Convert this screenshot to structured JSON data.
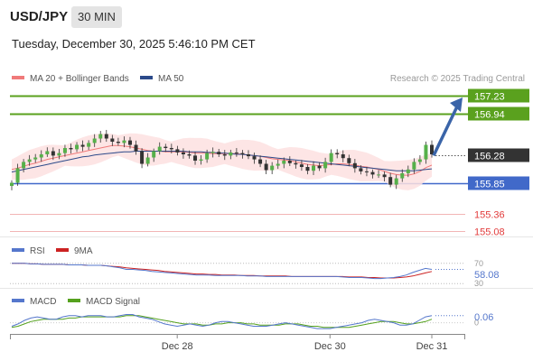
{
  "header": {
    "pair": "USD/JPY",
    "timeframe": "30 MIN",
    "datetime": "Tuesday, December 30, 2025 5:46:10 PM CET"
  },
  "credit": "Research © 2025 Trading Central",
  "colors": {
    "resistance": "#5aa11e",
    "support": "#e23c3c",
    "pivot": "#4169c9",
    "last": "#333333",
    "ma20": "#f07a7a",
    "ma50": "#2c4a8a",
    "bollinger_fill": "#fde0e0",
    "rsi": "#5577cc",
    "rsi_ma": "#cc2222",
    "macd": "#5577cc",
    "macd_signal": "#55a11e",
    "arrow": "#3a64a8"
  },
  "chart_data": [
    {
      "type": "line",
      "panel": "price",
      "title": "",
      "y_range": [
        155.0,
        157.4
      ],
      "legend": [
        {
          "label": "MA 20 + Bollinger Bands",
          "color": "#f07a7a"
        },
        {
          "label": "MA 50",
          "color": "#2c4a8a"
        }
      ],
      "levels": [
        {
          "label": "157.23",
          "value": 157.23,
          "kind": "resistance"
        },
        {
          "label": "156.94",
          "value": 156.94,
          "kind": "resistance"
        },
        {
          "label": "156.28",
          "value": 156.28,
          "kind": "last"
        },
        {
          "label": "155.85",
          "value": 155.85,
          "kind": "pivot"
        },
        {
          "label": "155.36",
          "value": 155.36,
          "kind": "support"
        },
        {
          "label": "155.08",
          "value": 155.08,
          "kind": "support"
        }
      ],
      "series": [
        {
          "name": "USD/JPY",
          "values": [
            155.85,
            156.08,
            156.18,
            156.22,
            156.25,
            156.3,
            156.35,
            156.28,
            156.32,
            156.4,
            156.38,
            156.45,
            156.42,
            156.48,
            156.55,
            156.62,
            156.55,
            156.5,
            156.48,
            156.52,
            156.45,
            156.35,
            156.15,
            156.25,
            156.35,
            156.42,
            156.4,
            156.38,
            156.33,
            156.3,
            156.28,
            156.2,
            156.22,
            156.32,
            156.34,
            156.3,
            156.28,
            156.33,
            156.32,
            156.3,
            156.27,
            156.22,
            156.15,
            156.05,
            156.12,
            156.15,
            156.2,
            156.16,
            156.14,
            156.1,
            156.04,
            156.12,
            156.08,
            156.18,
            156.32,
            156.3,
            156.24,
            156.16,
            156.08,
            156.03,
            156.02,
            155.98,
            155.98,
            155.94,
            155.82,
            155.92,
            156.0,
            156.06,
            156.18,
            156.22,
            156.45,
            156.3
          ]
        },
        {
          "name": "MA 20",
          "values": [
            156.06,
            156.08,
            156.11,
            156.14,
            156.16,
            156.19,
            156.22,
            156.24,
            156.26,
            156.28,
            156.3,
            156.32,
            156.34,
            156.36,
            156.38,
            156.4,
            156.42,
            156.44,
            156.44,
            156.43,
            156.42,
            156.4,
            156.38,
            156.36,
            156.35,
            156.35,
            156.34,
            156.34,
            156.34,
            156.34,
            156.33,
            156.32,
            156.32,
            156.32,
            156.31,
            156.31,
            156.31,
            156.31,
            156.31,
            156.3,
            156.29,
            156.28,
            156.27,
            156.25,
            156.23,
            156.22,
            156.21,
            156.2,
            156.18,
            156.16,
            156.14,
            156.13,
            156.12,
            156.13,
            156.14,
            156.15,
            156.15,
            156.14,
            156.13,
            156.11,
            156.1,
            156.08,
            156.06,
            156.03,
            156.0,
            155.98,
            155.97,
            155.97,
            155.99,
            156.03,
            156.09,
            156.13
          ]
        },
        {
          "name": "MA 50",
          "values": [
            156.02,
            156.04,
            156.06,
            156.08,
            156.1,
            156.12,
            156.14,
            156.16,
            156.18,
            156.2,
            156.22,
            156.24,
            156.26,
            156.27,
            156.29,
            156.3,
            156.31,
            156.32,
            156.33,
            156.34,
            156.34,
            156.35,
            156.35,
            156.35,
            156.35,
            156.35,
            156.35,
            156.35,
            156.35,
            156.35,
            156.34,
            156.34,
            156.34,
            156.33,
            156.33,
            156.32,
            156.32,
            156.31,
            156.3,
            156.3,
            156.29,
            156.28,
            156.27,
            156.26,
            156.25,
            156.24,
            156.23,
            156.22,
            156.21,
            156.2,
            156.19,
            156.18,
            156.17,
            156.16,
            156.15,
            156.14,
            156.13,
            156.12,
            156.11,
            156.1,
            156.09,
            156.08,
            156.07,
            156.06,
            156.05,
            156.04,
            156.04,
            156.04,
            156.04,
            156.05,
            156.06,
            156.07
          ]
        }
      ],
      "bollinger_width": 0.2,
      "projection": {
        "from": 156.28,
        "to": 157.2
      }
    },
    {
      "type": "line",
      "panel": "rsi",
      "legend": [
        {
          "label": "RSI",
          "color": "#5577cc"
        },
        {
          "label": "9MA",
          "color": "#cc2222"
        }
      ],
      "y_range": [
        25,
        75
      ],
      "reference_lines": [
        {
          "label": "70",
          "value": 70
        },
        {
          "label": "30",
          "value": 30
        }
      ],
      "last_value_label": "58.08",
      "series": [
        {
          "name": "RSI",
          "values": [
            70,
            70,
            70,
            69,
            69,
            68,
            68,
            68,
            68,
            67,
            67,
            67,
            66,
            66,
            66,
            65,
            63,
            61,
            58,
            58,
            57,
            56,
            54,
            53,
            52,
            51,
            50,
            49,
            48,
            47,
            47,
            47,
            46,
            46,
            46,
            46,
            46,
            45,
            45,
            45,
            44,
            44,
            44,
            44,
            44,
            44,
            44,
            44,
            44,
            44,
            44,
            44,
            43,
            42,
            42,
            42,
            41,
            40,
            40,
            41,
            42,
            44,
            47,
            52,
            56,
            60,
            58
          ]
        },
        {
          "name": "9MA",
          "values": [
            70,
            70,
            70,
            69,
            69,
            68,
            68,
            68,
            68,
            67,
            67,
            67,
            66,
            66,
            66,
            65,
            64,
            63,
            61,
            60,
            59,
            58,
            57,
            56,
            54,
            53,
            52,
            51,
            50,
            49,
            49,
            48,
            48,
            47,
            47,
            47,
            46,
            46,
            46,
            45,
            45,
            45,
            45,
            45,
            44,
            44,
            44,
            44,
            44,
            44,
            44,
            44,
            44,
            43,
            43,
            43,
            42,
            42,
            41,
            41,
            41,
            42,
            43,
            45,
            48,
            51,
            54
          ]
        }
      ]
    },
    {
      "type": "line",
      "panel": "macd",
      "legend": [
        {
          "label": "MACD",
          "color": "#5577cc"
        },
        {
          "label": "MACD Signal",
          "color": "#55a11e"
        }
      ],
      "y_range": [
        -0.08,
        0.12
      ],
      "reference_lines": [
        {
          "label": "0",
          "value": 0
        }
      ],
      "last_value_label": "0.06",
      "series": [
        {
          "name": "MACD",
          "values": [
            -0.03,
            -0.01,
            0.02,
            0.04,
            0.05,
            0.04,
            0.03,
            0.03,
            0.05,
            0.06,
            0.06,
            0.05,
            0.06,
            0.06,
            0.06,
            0.05,
            0.05,
            0.06,
            0.07,
            0.07,
            0.05,
            0.04,
            0.03,
            0.01,
            -0.01,
            -0.02,
            -0.03,
            -0.02,
            -0.01,
            -0.02,
            -0.03,
            -0.02,
            0.0,
            0.01,
            0.01,
            0.0,
            -0.01,
            -0.02,
            -0.03,
            -0.03,
            -0.03,
            -0.02,
            -0.01,
            0.0,
            -0.01,
            -0.02,
            -0.03,
            -0.04,
            -0.05,
            -0.05,
            -0.05,
            -0.04,
            -0.03,
            -0.02,
            -0.01,
            0.0,
            0.02,
            0.03,
            0.02,
            0.01,
            0.0,
            -0.02,
            -0.02,
            -0.01,
            0.02,
            0.05,
            0.06
          ]
        },
        {
          "name": "MACD Signal",
          "values": [
            -0.04,
            -0.03,
            -0.01,
            0.01,
            0.02,
            0.03,
            0.03,
            0.03,
            0.03,
            0.04,
            0.04,
            0.05,
            0.05,
            0.05,
            0.05,
            0.05,
            0.05,
            0.05,
            0.06,
            0.06,
            0.06,
            0.05,
            0.04,
            0.03,
            0.02,
            0.01,
            0.0,
            -0.01,
            -0.01,
            -0.01,
            -0.02,
            -0.02,
            -0.01,
            -0.01,
            0.0,
            0.0,
            0.0,
            -0.01,
            -0.01,
            -0.02,
            -0.02,
            -0.02,
            -0.02,
            -0.01,
            -0.01,
            -0.01,
            -0.02,
            -0.03,
            -0.03,
            -0.04,
            -0.04,
            -0.04,
            -0.04,
            -0.04,
            -0.03,
            -0.02,
            -0.01,
            0.0,
            0.01,
            0.01,
            0.01,
            0.0,
            -0.01,
            -0.01,
            0.0,
            0.01,
            0.03
          ]
        }
      ]
    }
  ],
  "x_axis": {
    "ticks": [
      {
        "label": "Dec 28",
        "index": 26
      },
      {
        "label": "Dec 30",
        "index": 50
      },
      {
        "label": "Dec 31",
        "index": 66
      }
    ]
  }
}
